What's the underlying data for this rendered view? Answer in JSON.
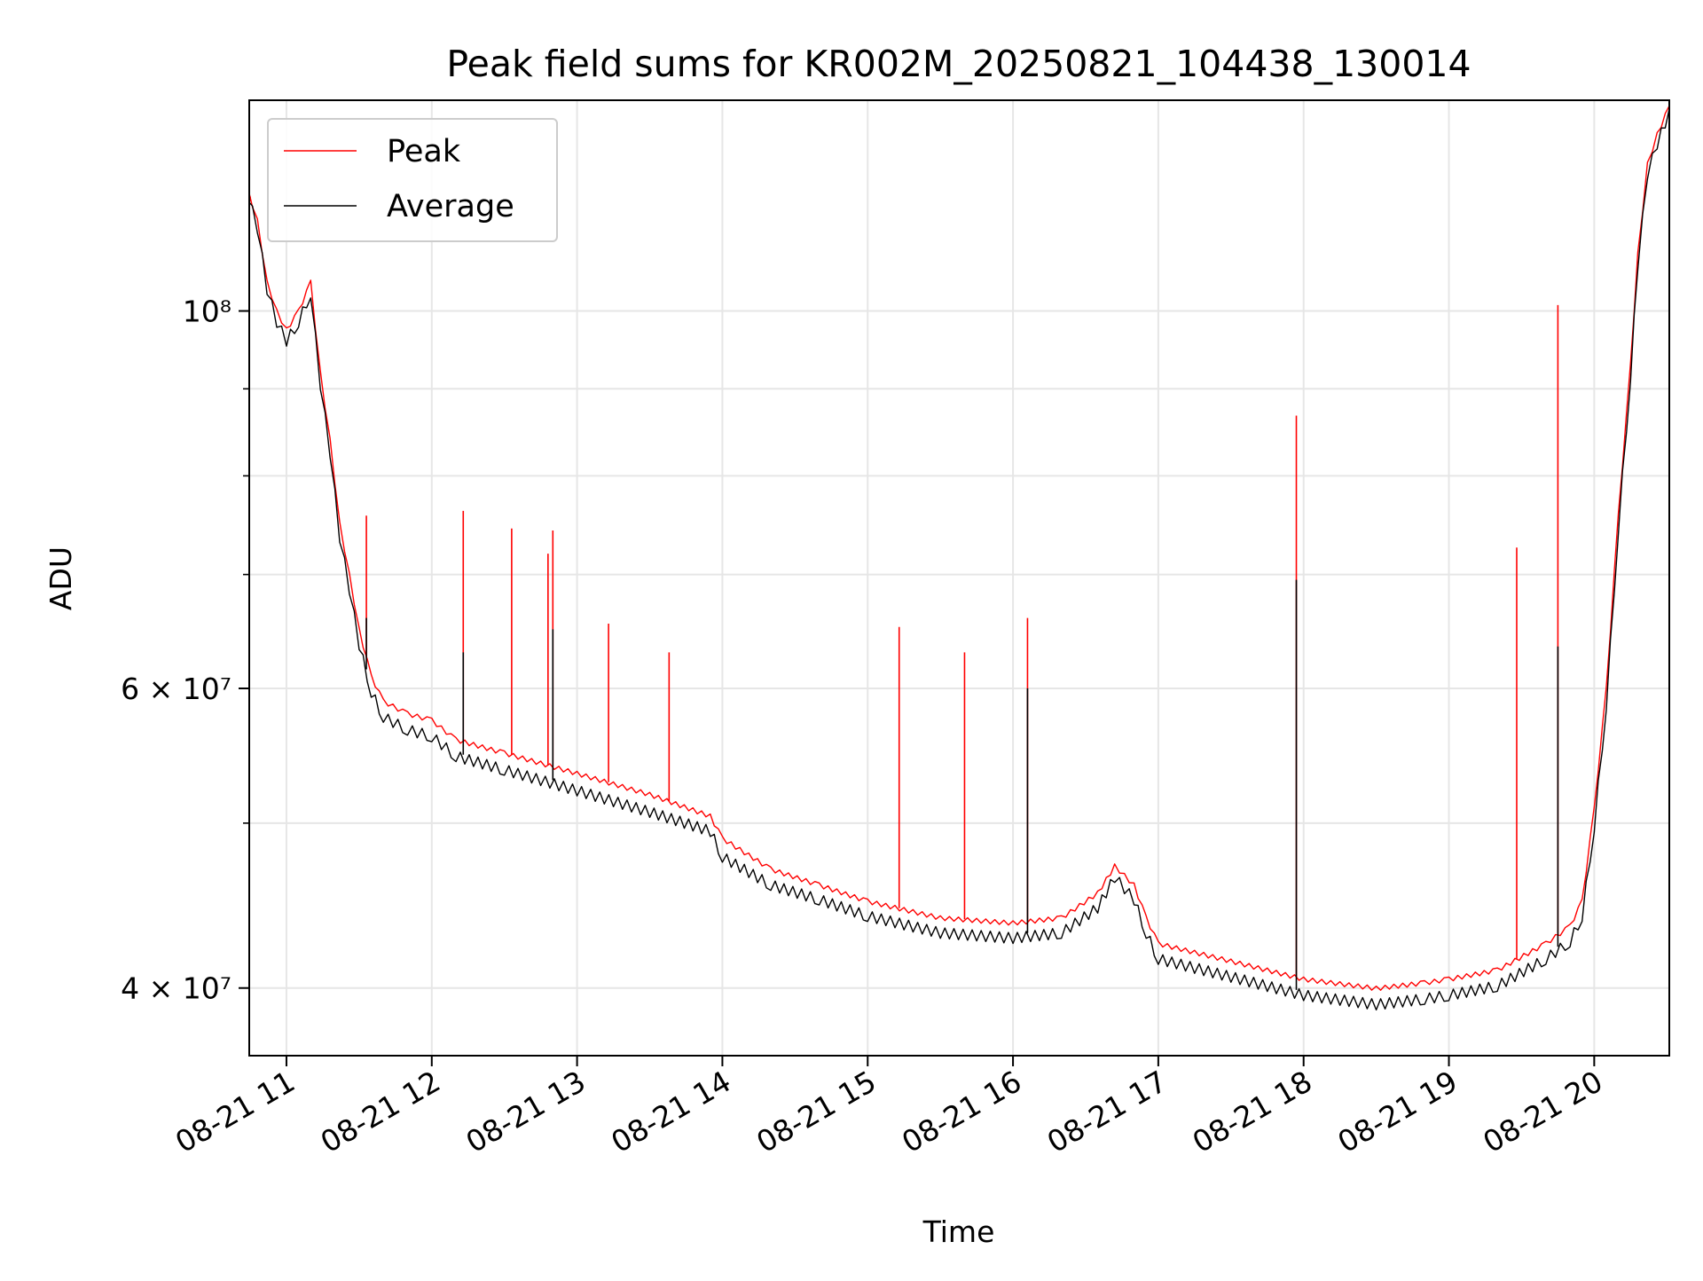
{
  "chart_data": {
    "type": "line",
    "title": "Peak field sums for KR002M_20250821_104438_130014",
    "xlabel": "Time",
    "ylabel": "ADU",
    "yscale": "log",
    "xlim": [
      "2025-08-21 10:44:38",
      "2025-08-21 20:31:00"
    ],
    "ylim": [
      36500000,
      133000000
    ],
    "x_ticks": [
      "2025-08-21 11:00",
      "2025-08-21 12:00",
      "2025-08-21 13:00",
      "2025-08-21 14:00",
      "2025-08-21 15:00",
      "2025-08-21 16:00",
      "2025-08-21 17:00",
      "2025-08-21 18:00",
      "2025-08-21 19:00",
      "2025-08-21 20:00"
    ],
    "x_tick_labels": [
      "08-21 11",
      "08-21 12",
      "08-21 13",
      "08-21 14",
      "08-21 15",
      "08-21 16",
      "08-21 17",
      "08-21 18",
      "08-21 19",
      "08-21 20"
    ],
    "y_major_ticks": [
      40000000,
      60000000,
      100000000
    ],
    "y_major_tick_labels": [
      "4 × 10⁷",
      "6 × 10⁷",
      "10⁸"
    ],
    "y_minor_ticks": [
      50000000,
      70000000,
      80000000,
      90000000
    ],
    "grid": true,
    "legend": "top-left",
    "series": [
      {
        "name": "Peak",
        "color": "#ff0000",
        "x": [
          "2025-08-21 10:44",
          "2025-08-21 10:48",
          "2025-08-21 10:52",
          "2025-08-21 10:56",
          "2025-08-21 11:00",
          "2025-08-21 11:05",
          "2025-08-21 11:10",
          "2025-08-21 11:14",
          "2025-08-21 11:18",
          "2025-08-21 11:22",
          "2025-08-21 11:26",
          "2025-08-21 11:30",
          "2025-08-21 11:35",
          "2025-08-21 11:40",
          "2025-08-21 11:50",
          "2025-08-21 12:00",
          "2025-08-21 12:10",
          "2025-08-21 12:30",
          "2025-08-21 13:00",
          "2025-08-21 13:30",
          "2025-08-21 13:55",
          "2025-08-21 14:00",
          "2025-08-21 14:20",
          "2025-08-21 14:40",
          "2025-08-21 15:00",
          "2025-08-21 15:30",
          "2025-08-21 16:00",
          "2025-08-21 16:20",
          "2025-08-21 16:35",
          "2025-08-21 16:42",
          "2025-08-21 16:50",
          "2025-08-21 16:55",
          "2025-08-21 17:00",
          "2025-08-21 17:30",
          "2025-08-21 18:00",
          "2025-08-21 18:30",
          "2025-08-21 18:50",
          "2025-08-21 19:00",
          "2025-08-21 19:20",
          "2025-08-21 19:40",
          "2025-08-21 19:50",
          "2025-08-21 19:55",
          "2025-08-21 20:00",
          "2025-08-21 20:05",
          "2025-08-21 20:10",
          "2025-08-21 20:15",
          "2025-08-21 20:18",
          "2025-08-21 20:22",
          "2025-08-21 20:26",
          "2025-08-21 20:31"
        ],
        "y": [
          118000000,
          113000000,
          104000000,
          100000000,
          97500000,
          100000000,
          104000000,
          92000000,
          84000000,
          75000000,
          70000000,
          65000000,
          61000000,
          59000000,
          58000000,
          57500000,
          56000000,
          55000000,
          53500000,
          52000000,
          50500000,
          49000000,
          47000000,
          46000000,
          45000000,
          44000000,
          43700000,
          44000000,
          45500000,
          47200000,
          46000000,
          44000000,
          42500000,
          41500000,
          40500000,
          40000000,
          40300000,
          40500000,
          41000000,
          42500000,
          43500000,
          45000000,
          51000000,
          60000000,
          76000000,
          93000000,
          108000000,
          122000000,
          127000000,
          132000000
        ],
        "spikes": [
          {
            "x": "2025-08-21 10:45",
            "y": 116000000
          },
          {
            "x": "2025-08-21 11:33",
            "y": 75800000
          },
          {
            "x": "2025-08-21 12:13",
            "y": 76300000
          },
          {
            "x": "2025-08-21 12:33",
            "y": 74500000
          },
          {
            "x": "2025-08-21 12:48",
            "y": 72000000
          },
          {
            "x": "2025-08-21 12:50",
            "y": 74300000
          },
          {
            "x": "2025-08-21 13:13",
            "y": 65500000
          },
          {
            "x": "2025-08-21 13:38",
            "y": 63000000
          },
          {
            "x": "2025-08-21 15:13",
            "y": 65200000
          },
          {
            "x": "2025-08-21 15:40",
            "y": 63000000
          },
          {
            "x": "2025-08-21 16:06",
            "y": 66000000
          },
          {
            "x": "2025-08-21 17:57",
            "y": 86800000
          },
          {
            "x": "2025-08-21 19:28",
            "y": 72600000
          },
          {
            "x": "2025-08-21 19:45",
            "y": 100800000
          }
        ]
      },
      {
        "name": "Average",
        "color": "#000000",
        "x": [
          "2025-08-21 10:44",
          "2025-08-21 10:48",
          "2025-08-21 10:52",
          "2025-08-21 10:56",
          "2025-08-21 11:00",
          "2025-08-21 11:05",
          "2025-08-21 11:10",
          "2025-08-21 11:14",
          "2025-08-21 11:18",
          "2025-08-21 11:22",
          "2025-08-21 11:26",
          "2025-08-21 11:30",
          "2025-08-21 11:35",
          "2025-08-21 11:40",
          "2025-08-21 11:50",
          "2025-08-21 12:00",
          "2025-08-21 12:10",
          "2025-08-21 12:30",
          "2025-08-21 13:00",
          "2025-08-21 13:30",
          "2025-08-21 13:55",
          "2025-08-21 14:00",
          "2025-08-21 14:20",
          "2025-08-21 14:40",
          "2025-08-21 15:00",
          "2025-08-21 15:30",
          "2025-08-21 16:00",
          "2025-08-21 16:20",
          "2025-08-21 16:35",
          "2025-08-21 16:42",
          "2025-08-21 16:50",
          "2025-08-21 16:55",
          "2025-08-21 17:00",
          "2025-08-21 17:30",
          "2025-08-21 18:00",
          "2025-08-21 18:30",
          "2025-08-21 18:50",
          "2025-08-21 19:00",
          "2025-08-21 19:20",
          "2025-08-21 19:40",
          "2025-08-21 19:50",
          "2025-08-21 19:55",
          "2025-08-21 20:00",
          "2025-08-21 20:05",
          "2025-08-21 20:10",
          "2025-08-21 20:15",
          "2025-08-21 20:18",
          "2025-08-21 20:22",
          "2025-08-21 20:26",
          "2025-08-21 20:31"
        ],
        "y": [
          117500000,
          112500000,
          103500000,
          99000000,
          96500000,
          99000000,
          103000000,
          91000000,
          83000000,
          74000000,
          69000000,
          64000000,
          60000000,
          58000000,
          57000000,
          56500000,
          55000000,
          54000000,
          52500000,
          51000000,
          49700000,
          48000000,
          46200000,
          45300000,
          44300000,
          43300000,
          43000000,
          43300000,
          44800000,
          46700000,
          45300000,
          43300000,
          41800000,
          40800000,
          39800000,
          39300000,
          39600000,
          39800000,
          40300000,
          41800000,
          42800000,
          44300000,
          50000000,
          59000000,
          75000000,
          92000000,
          107000000,
          121000000,
          126000000,
          131500000
        ],
        "spikes": [
          {
            "x": "2025-08-21 11:33",
            "y": 66000000
          },
          {
            "x": "2025-08-21 12:13",
            "y": 63000000
          },
          {
            "x": "2025-08-21 12:50",
            "y": 65000000
          },
          {
            "x": "2025-08-21 16:06",
            "y": 60000000
          },
          {
            "x": "2025-08-21 17:57",
            "y": 69500000
          },
          {
            "x": "2025-08-21 19:45",
            "y": 63500000
          }
        ]
      }
    ]
  }
}
